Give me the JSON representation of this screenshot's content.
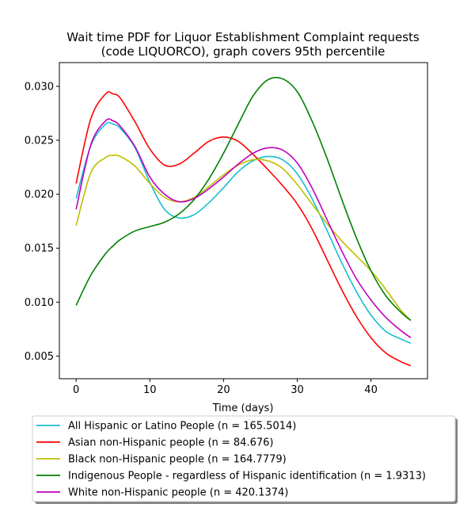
{
  "chart_data": {
    "type": "line",
    "title": "Wait time PDF for Liquor Establishment Complaint  requests\n(code LIQUORCO), graph covers 95th percentile",
    "xlabel": "Time (days)",
    "ylabel": "",
    "xlim": [
      -2.27,
      47.67
    ],
    "ylim": [
      0.0029,
      0.0322
    ],
    "xticks": [
      0,
      10,
      20,
      30,
      40
    ],
    "yticks": [
      0.005,
      0.01,
      0.015,
      0.02,
      0.025,
      0.03
    ],
    "xtick_labels": [
      "0",
      "10",
      "20",
      "30",
      "40"
    ],
    "ytick_labels": [
      "0.005",
      "0.010",
      "0.015",
      "0.020",
      "0.025",
      "0.030"
    ],
    "grid": false,
    "legend_position": "below",
    "x": [
      0,
      2,
      4,
      5,
      6,
      8,
      10,
      12,
      14,
      16,
      18,
      20,
      22,
      24,
      26,
      28,
      30,
      32,
      34,
      36,
      38,
      40,
      42,
      44,
      45.4
    ],
    "series": [
      {
        "name": "All Hispanic or Latino People (n = 165.5014)",
        "color": "#17becf",
        "values": [
          0.0196,
          0.0245,
          0.0265,
          0.0265,
          0.0261,
          0.0243,
          0.0211,
          0.0186,
          0.0178,
          0.0181,
          0.0192,
          0.0206,
          0.0221,
          0.0231,
          0.0235,
          0.0232,
          0.0219,
          0.0196,
          0.0167,
          0.0137,
          0.011,
          0.0088,
          0.0073,
          0.0066,
          0.0062
        ]
      },
      {
        "name": "Asian non-Hispanic people (n = 84.676)",
        "color": "#ff0000",
        "values": [
          0.021,
          0.027,
          0.0293,
          0.0293,
          0.0289,
          0.0267,
          0.0242,
          0.0227,
          0.0228,
          0.0238,
          0.0249,
          0.0253,
          0.0249,
          0.0237,
          0.0223,
          0.0208,
          0.0191,
          0.0168,
          0.014,
          0.0112,
          0.0087,
          0.0067,
          0.0053,
          0.0045,
          0.0041
        ]
      },
      {
        "name": "Black non-Hispanic people (n = 164.7779)",
        "color": "#bfbf00",
        "values": [
          0.0171,
          0.022,
          0.0234,
          0.0236,
          0.0235,
          0.0226,
          0.021,
          0.0197,
          0.0193,
          0.0197,
          0.0207,
          0.0218,
          0.0227,
          0.0232,
          0.0231,
          0.0224,
          0.0209,
          0.0191,
          0.0173,
          0.0157,
          0.0143,
          0.0129,
          0.0112,
          0.0093,
          0.0083
        ]
      },
      {
        "name": "Indigenous People - regardless of Hispanic identification (n = 1.9313)",
        "color": "#008000",
        "values": [
          0.0097,
          0.0125,
          0.0145,
          0.0152,
          0.0158,
          0.0166,
          0.017,
          0.0174,
          0.0182,
          0.0195,
          0.0214,
          0.0238,
          0.0265,
          0.0291,
          0.0306,
          0.0307,
          0.0295,
          0.0268,
          0.0234,
          0.0196,
          0.016,
          0.0129,
          0.0106,
          0.0091,
          0.0083
        ]
      },
      {
        "name": "White non-Hispanic people (n = 420.1374)",
        "color": "#bf00bf",
        "values": [
          0.0186,
          0.0246,
          0.0268,
          0.0268,
          0.0263,
          0.0244,
          0.0216,
          0.02,
          0.0193,
          0.0196,
          0.0205,
          0.0216,
          0.0228,
          0.0238,
          0.0243,
          0.0241,
          0.0229,
          0.0206,
          0.0177,
          0.0148,
          0.0122,
          0.0102,
          0.0086,
          0.0074,
          0.0067
        ]
      }
    ]
  }
}
